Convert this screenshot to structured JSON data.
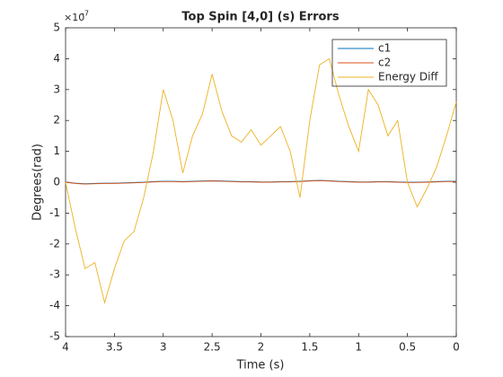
{
  "chart_data": {
    "type": "line",
    "title": "Top Spin [4,0] (s) Errors",
    "xlabel": "Time (s)",
    "ylabel": "Degrees(rad)",
    "exponent_base": "×10",
    "exponent": "-7",
    "x": [
      4,
      3.9,
      3.8,
      3.7,
      3.6,
      3.5,
      3.4,
      3.3,
      3.2,
      3.1,
      3.0,
      2.9,
      2.8,
      2.7,
      2.6,
      2.5,
      2.4,
      2.3,
      2.2,
      2.1,
      2.0,
      1.9,
      1.8,
      1.7,
      1.6,
      1.5,
      1.4,
      1.3,
      1.2,
      1.1,
      1.0,
      0.9,
      0.8,
      0.7,
      0.6,
      0.5,
      0.4,
      0.3,
      0.2,
      0.1,
      0.0
    ],
    "series": [
      {
        "name": "c1",
        "color": "#0072bd",
        "values": [
          0,
          -0.03,
          -0.05,
          -0.04,
          -0.03,
          -0.03,
          -0.02,
          -0.01,
          0,
          0.02,
          0.03,
          0.03,
          0.02,
          0.03,
          0.04,
          0.05,
          0.04,
          0.03,
          0.02,
          0.02,
          0.01,
          0.01,
          0.02,
          0.02,
          0.03,
          0.05,
          0.06,
          0.05,
          0.03,
          0.02,
          0.01,
          0.01,
          0.02,
          0.02,
          0.01,
          0,
          0,
          0.01,
          0.02,
          0.03,
          0.03
        ]
      },
      {
        "name": "c2",
        "color": "#d95319",
        "values": [
          0,
          -0.04,
          -0.06,
          -0.05,
          -0.04,
          -0.04,
          -0.03,
          -0.02,
          -0.01,
          0.01,
          0.02,
          0.02,
          0.01,
          0.02,
          0.03,
          0.04,
          0.03,
          0.02,
          0.01,
          0.01,
          0,
          0,
          0.01,
          0.01,
          0.02,
          0.04,
          0.05,
          0.04,
          0.02,
          0.01,
          0,
          0,
          0.01,
          0.01,
          0,
          -0.01,
          -0.01,
          0,
          0.01,
          0.02,
          0.02
        ]
      },
      {
        "name": "Energy Diff",
        "color": "#edb120",
        "values": [
          0,
          -1.5,
          -2.8,
          -2.6,
          -3.9,
          -2.8,
          -1.9,
          -1.6,
          -0.5,
          1.0,
          3.0,
          2.0,
          0.3,
          1.5,
          2.2,
          3.5,
          2.3,
          1.5,
          1.3,
          1.7,
          1.2,
          1.5,
          1.8,
          1.0,
          -0.5,
          2.0,
          3.8,
          4.0,
          2.8,
          1.8,
          1.0,
          3.0,
          2.5,
          1.5,
          2.0,
          0.0,
          -0.8,
          -0.2,
          0.5,
          1.5,
          2.6
        ]
      }
    ],
    "xlim": [
      4,
      0
    ],
    "xticks": [
      4,
      3.5,
      3,
      2.5,
      2,
      1.5,
      1,
      0.5,
      0
    ],
    "ylim": [
      -5,
      5
    ],
    "yticks": [
      -5,
      -4,
      -3,
      -2,
      -1,
      0,
      1,
      2,
      3,
      4,
      5
    ],
    "grid": false,
    "legend": "upper right"
  }
}
